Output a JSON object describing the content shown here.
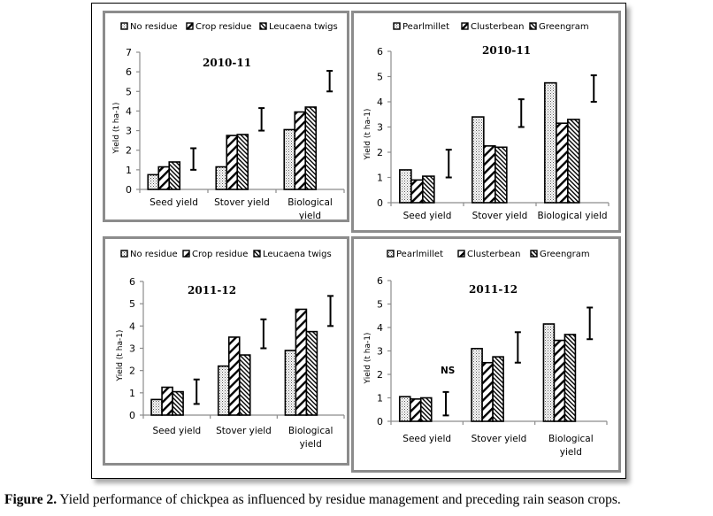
{
  "caption": {
    "label": "Figure 2.",
    "text": " Yield performance of chickpea as influenced by residue management and preceding rain season crops."
  },
  "chart_data": [
    {
      "type": "bar",
      "title": "2010-11",
      "xlabel": "",
      "ylabel": "Yield (t ha-1)",
      "categories": [
        "Seed yield",
        "Stover yield",
        "Biological yield"
      ],
      "category_lines": [
        [
          "Seed yield"
        ],
        [
          "Stover yield"
        ],
        [
          "Biological",
          "yield"
        ]
      ],
      "series": [
        {
          "name": "No residue",
          "pattern": "dots",
          "values": [
            0.75,
            1.15,
            3.05
          ]
        },
        {
          "name": "Crop residue",
          "pattern": "diag-wide",
          "values": [
            1.15,
            2.75,
            3.95
          ]
        },
        {
          "name": "Leucaena twigs",
          "pattern": "diag-dense",
          "values": [
            1.4,
            2.8,
            4.2
          ]
        }
      ],
      "error_bars": [
        [
          1.0,
          2.1
        ],
        [
          3.0,
          4.15
        ],
        [
          5.0,
          6.05
        ]
      ],
      "yticks": [
        0,
        1,
        2,
        3,
        4,
        5,
        6,
        7
      ],
      "ylim": [
        0,
        7
      ],
      "legend": "top",
      "annotation": "",
      "grid": false
    },
    {
      "type": "bar",
      "title": "2010-11",
      "xlabel": "",
      "ylabel": "Yield (t ha-1)",
      "categories": [
        "Seed yield",
        "Stover yield",
        "Biological yield"
      ],
      "category_lines": [
        [
          "Seed yield"
        ],
        [
          "Stover yield"
        ],
        [
          "Biological yield"
        ]
      ],
      "series": [
        {
          "name": "Pearlmillet",
          "pattern": "dots",
          "values": [
            1.3,
            3.4,
            4.75
          ]
        },
        {
          "name": "Clusterbean",
          "pattern": "diag-wide",
          "values": [
            0.9,
            2.25,
            3.15
          ]
        },
        {
          "name": "Greengram",
          "pattern": "diag-dense",
          "values": [
            1.05,
            2.2,
            3.3
          ]
        }
      ],
      "error_bars": [
        [
          1.0,
          2.1
        ],
        [
          3.0,
          4.1
        ],
        [
          4.0,
          5.05
        ]
      ],
      "yticks": [
        0,
        1,
        2,
        3,
        4,
        5,
        6
      ],
      "ylim": [
        0,
        6
      ],
      "legend": "top",
      "annotation": "",
      "grid": false
    },
    {
      "type": "bar",
      "title": "2011-12",
      "xlabel": "",
      "ylabel": "Yield (t ha-1)",
      "categories": [
        "Seed yield",
        "Stover yield",
        "Biological yield"
      ],
      "category_lines": [
        [
          "Seed yield"
        ],
        [
          "Stover yield"
        ],
        [
          "Biological",
          "yield"
        ]
      ],
      "series": [
        {
          "name": "No residue",
          "pattern": "dots",
          "values": [
            0.7,
            2.2,
            2.9
          ]
        },
        {
          "name": "Crop residue",
          "pattern": "diag-wide",
          "values": [
            1.25,
            3.5,
            4.75
          ]
        },
        {
          "name": "Leucaena twigs",
          "pattern": "diag-dense",
          "values": [
            1.05,
            2.7,
            3.75
          ]
        }
      ],
      "error_bars": [
        [
          0.5,
          1.6
        ],
        [
          3.0,
          4.3
        ],
        [
          4.0,
          5.35
        ]
      ],
      "yticks": [
        0,
        1,
        2,
        3,
        4,
        5,
        6
      ],
      "ylim": [
        0,
        6
      ],
      "legend": "top",
      "annotation": "",
      "grid": false
    },
    {
      "type": "bar",
      "title": "2011-12",
      "xlabel": "",
      "ylabel": "Yield (t ha-1)",
      "categories": [
        "Seed yield",
        "Stover yield",
        "Biological yield"
      ],
      "category_lines": [
        [
          "Seed yield"
        ],
        [
          "Stover yield"
        ],
        [
          "Biological",
          "yield"
        ]
      ],
      "series": [
        {
          "name": "Pearlmillet",
          "pattern": "dots",
          "values": [
            1.05,
            3.1,
            4.15
          ]
        },
        {
          "name": "Clusterbean",
          "pattern": "diag-wide",
          "values": [
            0.95,
            2.5,
            3.45
          ]
        },
        {
          "name": "Greengram",
          "pattern": "diag-dense",
          "values": [
            1.0,
            2.75,
            3.7
          ]
        }
      ],
      "error_bars": [
        [
          0.25,
          1.25
        ],
        [
          2.5,
          3.8
        ],
        [
          3.5,
          4.85
        ]
      ],
      "yticks": [
        0,
        1,
        2,
        3,
        4,
        5,
        6
      ],
      "ylim": [
        0,
        6
      ],
      "legend": "top",
      "annotation": "NS",
      "grid": false
    }
  ]
}
